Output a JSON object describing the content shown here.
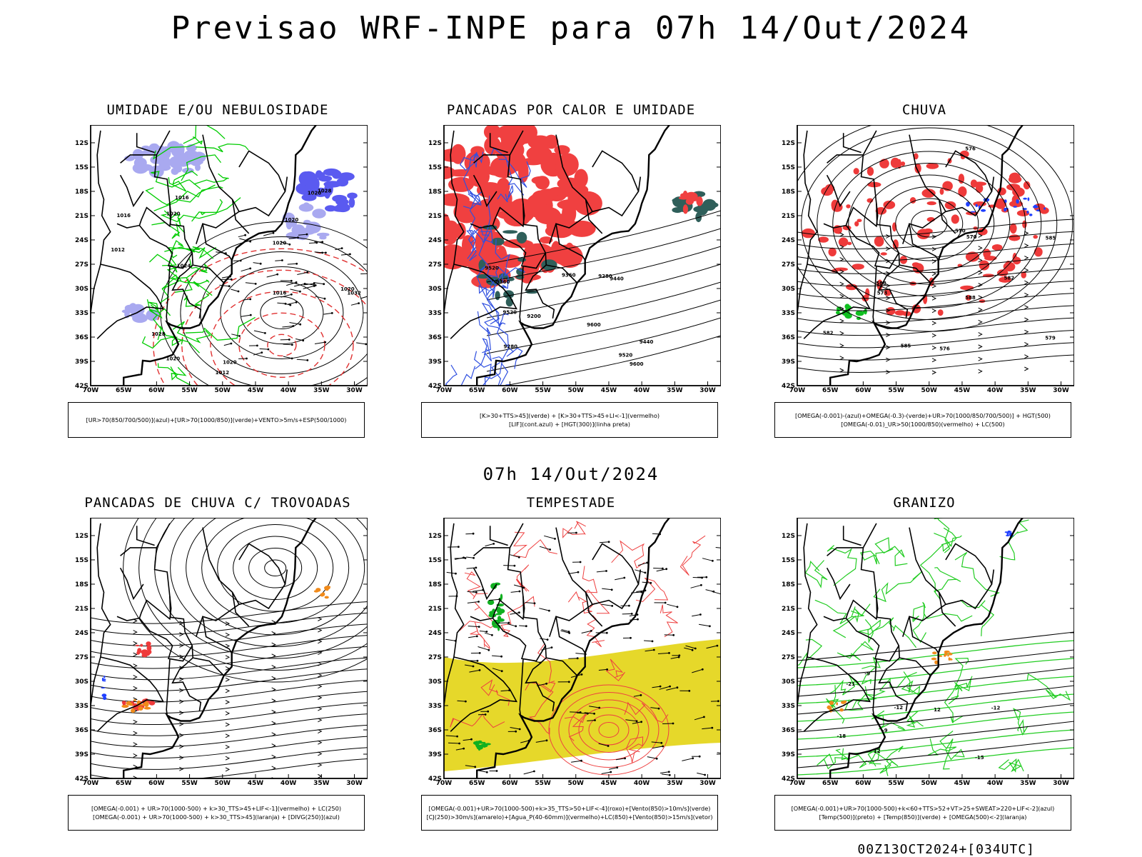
{
  "header": {
    "title": "Previsao WRF-INPE  para 07h 14/Out/2024",
    "mid_title": "07h 14/Out/2024",
    "footer": "00Z13OCT2024+[034UTC]"
  },
  "axes": {
    "lat_labels": [
      "12S",
      "15S",
      "18S",
      "21S",
      "24S",
      "27S",
      "30S",
      "33S",
      "36S",
      "39S",
      "42S"
    ],
    "lon_labels": [
      "70W",
      "65W",
      "60W",
      "55W",
      "50W",
      "45W",
      "40W",
      "35W",
      "30W"
    ]
  },
  "panels": [
    {
      "title": "UMIDADE E/OU NEBULOSIDADE",
      "legend": [
        "[UR>70(850/700/500)](azul)+[UR>70(1000/850)](verde)+VENTO>5m/s+ESP(500/1000)"
      ],
      "contour_labels": [
        "1016",
        "1020",
        "1020",
        "1020",
        "1020",
        "1012",
        "1016",
        "1024",
        "1028",
        "1032",
        "1020",
        "1016",
        "1020",
        "1028",
        "1012",
        "1020"
      ],
      "colors": {
        "fill": "#a9a9f0",
        "fill2": "#5a5af0",
        "green": "#00cc00",
        "red": "#e03030"
      }
    },
    {
      "title": "PANCADAS POR CALOR E UMIDADE",
      "legend": [
        "[K>30+TTS>45](verde)  +  [K>30+TTS>45+LI<-1](vermelho)",
        "[LIF](cont.azul)  +  [HGT(300)](linha preta)"
      ],
      "contour_labels": [
        "9600",
        "9520",
        "9600",
        "9520",
        "9440",
        "9360",
        "9280",
        "9200",
        "9440",
        "9360",
        "9280",
        "9520"
      ],
      "colors": {
        "fill": "#f04040",
        "fill2": "#2f5f5a",
        "blue": "#3050e0"
      }
    },
    {
      "title": "CHUVA",
      "legend": [
        "[OMEGA(-0.001)-(azul)+OMEGA(-0.3)-(verde)+UR>70(1000/850/700/500)]  +  HGT(500)",
        "[OMEGA(-0.01)_UR>50(1000/850)(vermelho)  +  LC(500)"
      ],
      "contour_labels": [
        "588",
        "582",
        "576",
        "570",
        "585",
        "582",
        "576",
        "573",
        "570",
        "579",
        "585",
        "588"
      ],
      "colors": {
        "fill": "#ee3a3a",
        "blue": "#2040ff",
        "green": "#10c020"
      }
    },
    {
      "title": "PANCADAS DE CHUVA C/ TROVOADAS",
      "legend": [
        "[OMEGA(-0.001)  +  UR>70(1000-500)  +  k>30_TTS>45+LIF<-1](vermelho)  +  LC(250)",
        "[OMEGA(-0.001)  +  UR>70(1000-500)  +  k>30_TTS>45](laranja)  +  [DIVG(250)](azul)"
      ],
      "contour_labels": [],
      "colors": {
        "red": "#ee3a3a",
        "orange": "#f08a1a",
        "blue": "#2040ff"
      }
    },
    {
      "title": "TEMPESTADE",
      "legend": [
        "[OMEGA(-0.001)+UR>70(1000-500)+k>35_TTS>50+LIF<-4](roxo)+[Vento(850)>10m/s](verde)",
        "[CJ(250)>30m/s](amarelo)+[Agua_P(40-60mm)](vermelho)+LC(850)+[Vento(850)>15m/s](vetor)"
      ],
      "contour_labels": [],
      "colors": {
        "yellow": "#e6d82a",
        "green": "#10b020",
        "red": "#ee4040"
      }
    },
    {
      "title": "GRANIZO",
      "legend": [
        "[OMEGA(-0.001)+UR>70(1000-500)+k<60+TTS>52+VT>25+SWEAT>220+LIF<-2](azul)",
        "[Temp(500)](preto)  +  [Temp(850)](verde)  +  [OMEGA(500)<-2](laranja)"
      ],
      "contour_labels": [
        "-9",
        "-12",
        "-12",
        "-15",
        "-18",
        "-21",
        "12",
        "12",
        "-9"
      ],
      "colors": {
        "green": "#22cc22",
        "orange": "#f08a1a",
        "blue": "#2040ff"
      }
    }
  ]
}
